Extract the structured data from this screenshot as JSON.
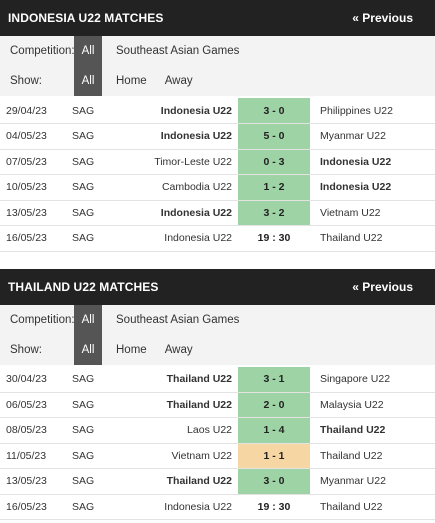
{
  "sections": [
    {
      "title": "INDONESIA U22 MATCHES",
      "prev_label": "« Previous",
      "competition_label": "Competition:",
      "competition_all": "All",
      "competition_name": "Southeast Asian Games",
      "show_label": "Show:",
      "show_all": "All",
      "show_home": "Home",
      "show_away": "Away",
      "matches": [
        {
          "date": "29/04/23",
          "comp": "SAG",
          "home": "Indonesia U22",
          "score": "3 - 0",
          "away": "Philippines U22",
          "winner": "home",
          "result": "win"
        },
        {
          "date": "04/05/23",
          "comp": "SAG",
          "home": "Indonesia U22",
          "score": "5 - 0",
          "away": "Myanmar U22",
          "winner": "home",
          "result": "win"
        },
        {
          "date": "07/05/23",
          "comp": "SAG",
          "home": "Timor-Leste U22",
          "score": "0 - 3",
          "away": "Indonesia U22",
          "winner": "away",
          "result": "win"
        },
        {
          "date": "10/05/23",
          "comp": "SAG",
          "home": "Cambodia U22",
          "score": "1 - 2",
          "away": "Indonesia U22",
          "winner": "away",
          "result": "win"
        },
        {
          "date": "13/05/23",
          "comp": "SAG",
          "home": "Indonesia U22",
          "score": "3 - 2",
          "away": "Vietnam U22",
          "winner": "home",
          "result": "win"
        },
        {
          "date": "16/05/23",
          "comp": "SAG",
          "home": "Indonesia U22",
          "score": "19 : 30",
          "away": "Thailand U22",
          "winner": "none",
          "result": "upcoming"
        }
      ]
    },
    {
      "title": "THAILAND U22 MATCHES",
      "prev_label": "« Previous",
      "competition_label": "Competition:",
      "competition_all": "All",
      "competition_name": "Southeast Asian Games",
      "show_label": "Show:",
      "show_all": "All",
      "show_home": "Home",
      "show_away": "Away",
      "matches": [
        {
          "date": "30/04/23",
          "comp": "SAG",
          "home": "Thailand U22",
          "score": "3 - 1",
          "away": "Singapore U22",
          "winner": "home",
          "result": "win"
        },
        {
          "date": "06/05/23",
          "comp": "SAG",
          "home": "Thailand U22",
          "score": "2 - 0",
          "away": "Malaysia U22",
          "winner": "home",
          "result": "win"
        },
        {
          "date": "08/05/23",
          "comp": "SAG",
          "home": "Laos U22",
          "score": "1 - 4",
          "away": "Thailand U22",
          "winner": "away",
          "result": "win"
        },
        {
          "date": "11/05/23",
          "comp": "SAG",
          "home": "Vietnam U22",
          "score": "1 - 1",
          "away": "Thailand U22",
          "winner": "none",
          "result": "draw"
        },
        {
          "date": "13/05/23",
          "comp": "SAG",
          "home": "Thailand U22",
          "score": "3 - 0",
          "away": "Myanmar U22",
          "winner": "home",
          "result": "win"
        },
        {
          "date": "16/05/23",
          "comp": "SAG",
          "home": "Indonesia U22",
          "score": "19 : 30",
          "away": "Thailand U22",
          "winner": "none",
          "result": "upcoming"
        }
      ]
    }
  ],
  "colors": {
    "header_bg": "#222222",
    "active_tab": "#555555",
    "win": "#9ed3a5",
    "draw": "#f6d6a2"
  }
}
